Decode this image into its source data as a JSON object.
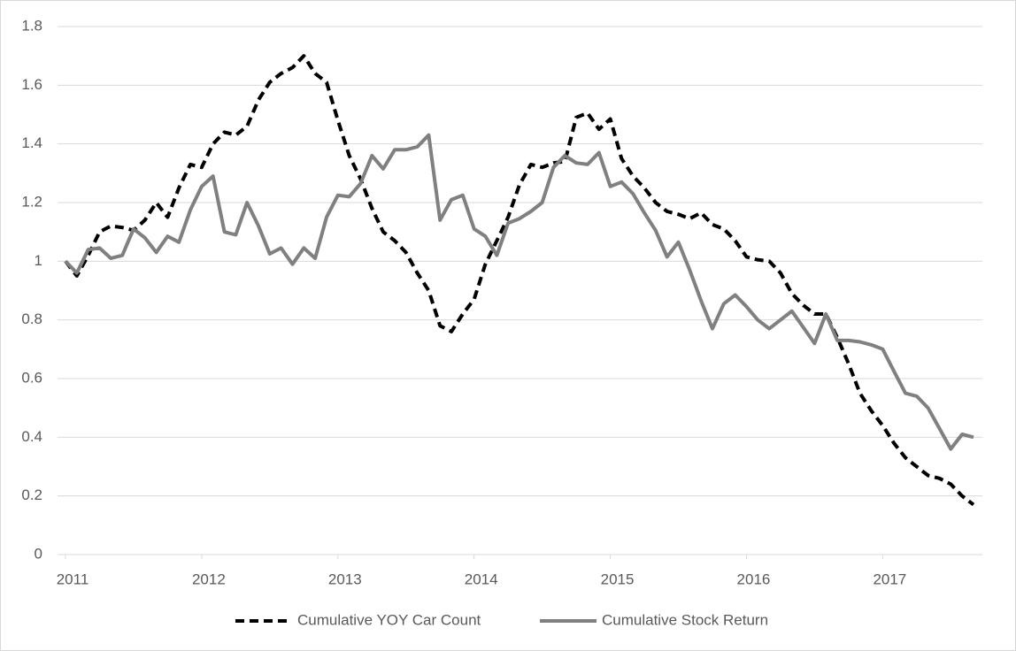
{
  "chart_data": {
    "type": "line",
    "x": [
      2011,
      2011.083,
      2011.167,
      2011.25,
      2011.333,
      2011.417,
      2011.5,
      2011.583,
      2011.667,
      2011.75,
      2011.833,
      2011.917,
      2012,
      2012.083,
      2012.167,
      2012.25,
      2012.333,
      2012.417,
      2012.5,
      2012.583,
      2012.667,
      2012.75,
      2012.833,
      2012.917,
      2013,
      2013.083,
      2013.167,
      2013.25,
      2013.333,
      2013.417,
      2013.5,
      2013.583,
      2013.667,
      2013.75,
      2013.833,
      2013.917,
      2014,
      2014.083,
      2014.167,
      2014.25,
      2014.333,
      2014.417,
      2014.5,
      2014.583,
      2014.667,
      2014.75,
      2014.833,
      2014.917,
      2015,
      2015.083,
      2015.167,
      2015.25,
      2015.333,
      2015.417,
      2015.5,
      2015.583,
      2015.667,
      2015.75,
      2015.833,
      2015.917,
      2016,
      2016.083,
      2016.167,
      2016.25,
      2016.333,
      2016.417,
      2016.5,
      2016.583,
      2016.667,
      2016.75,
      2016.833,
      2016.917,
      2017,
      2017.083,
      2017.167,
      2017.25,
      2017.333,
      2017.417,
      2017.5,
      2017.583,
      2017.667
    ],
    "series": [
      {
        "name": "Cumulative YOY Car Count",
        "color": "#000000",
        "dashed": true,
        "values": [
          1.0,
          0.95,
          1.02,
          1.1,
          1.12,
          1.115,
          1.105,
          1.14,
          1.2,
          1.15,
          1.25,
          1.33,
          1.32,
          1.4,
          1.44,
          1.43,
          1.46,
          1.55,
          1.61,
          1.64,
          1.66,
          1.7,
          1.64,
          1.61,
          1.48,
          1.36,
          1.28,
          1.18,
          1.1,
          1.07,
          1.03,
          0.96,
          0.9,
          0.78,
          0.76,
          0.82,
          0.87,
          0.99,
          1.07,
          1.15,
          1.26,
          1.33,
          1.32,
          1.335,
          1.34,
          1.49,
          1.505,
          1.45,
          1.485,
          1.35,
          1.29,
          1.25,
          1.2,
          1.17,
          1.16,
          1.145,
          1.165,
          1.125,
          1.11,
          1.07,
          1.015,
          1.005,
          1.0,
          0.96,
          0.89,
          0.85,
          0.82,
          0.82,
          0.74,
          0.65,
          0.55,
          0.49,
          0.44,
          0.38,
          0.33,
          0.3,
          0.27,
          0.26,
          0.24,
          0.2,
          0.17
        ]
      },
      {
        "name": "Cumulative Stock Return",
        "color": "#808080",
        "dashed": false,
        "values": [
          1.0,
          0.96,
          1.04,
          1.045,
          1.01,
          1.02,
          1.11,
          1.08,
          1.03,
          1.085,
          1.065,
          1.175,
          1.255,
          1.29,
          1.1,
          1.09,
          1.2,
          1.12,
          1.025,
          1.045,
          0.99,
          1.045,
          1.01,
          1.15,
          1.225,
          1.22,
          1.265,
          1.36,
          1.315,
          1.38,
          1.38,
          1.39,
          1.43,
          1.14,
          1.21,
          1.225,
          1.11,
          1.085,
          1.02,
          1.13,
          1.145,
          1.17,
          1.2,
          1.32,
          1.36,
          1.335,
          1.33,
          1.37,
          1.255,
          1.27,
          1.23,
          1.165,
          1.105,
          1.015,
          1.065,
          0.97,
          0.865,
          0.77,
          0.855,
          0.885,
          0.845,
          0.8,
          0.77,
          0.8,
          0.83,
          0.775,
          0.72,
          0.82,
          0.73,
          0.73,
          0.725,
          0.715,
          0.7,
          0.625,
          0.55,
          0.54,
          0.5,
          0.43,
          0.36,
          0.41,
          0.4
        ]
      }
    ],
    "xlim": [
      2011,
      2017.667
    ],
    "xticks": [
      2011,
      2012,
      2013,
      2014,
      2015,
      2016,
      2017
    ],
    "ylim": [
      0,
      1.8
    ],
    "yticks": [
      0,
      0.2,
      0.4,
      0.6,
      0.8,
      1,
      1.2,
      1.4,
      1.6,
      1.8
    ],
    "grid": true,
    "legend": "bottom"
  }
}
